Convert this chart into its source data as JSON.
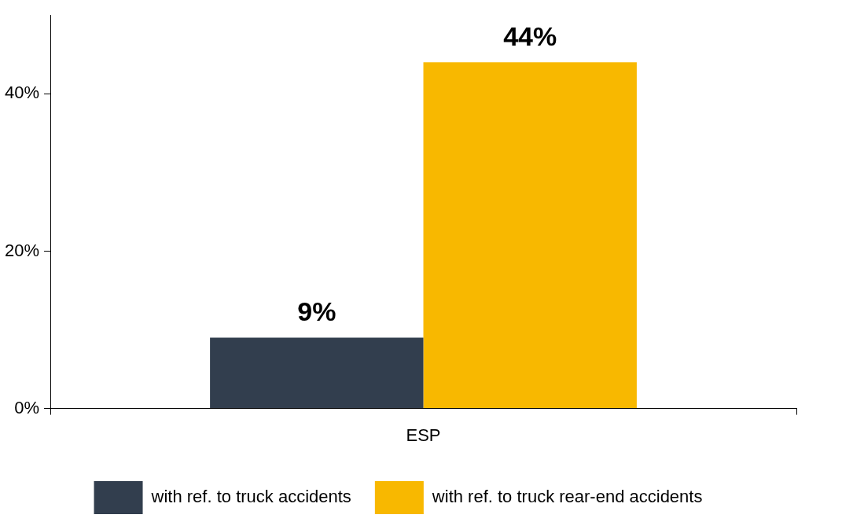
{
  "chart_data": {
    "type": "bar",
    "categories": [
      "ESP"
    ],
    "series": [
      {
        "name": "with ref. to truck accidents",
        "color": "#323e4e",
        "values": [
          9
        ],
        "value_labels": [
          "9%"
        ]
      },
      {
        "name": "with ref. to truck rear-end accidents",
        "color": "#f8b800",
        "values": [
          44
        ],
        "value_labels": [
          "44%"
        ]
      }
    ],
    "ylim": [
      0,
      50
    ],
    "yticks": [
      {
        "value": 0,
        "label": "0%"
      },
      {
        "value": 20,
        "label": "20%"
      },
      {
        "value": 40,
        "label": "40%"
      }
    ],
    "grid": false,
    "legend": "bottom"
  }
}
